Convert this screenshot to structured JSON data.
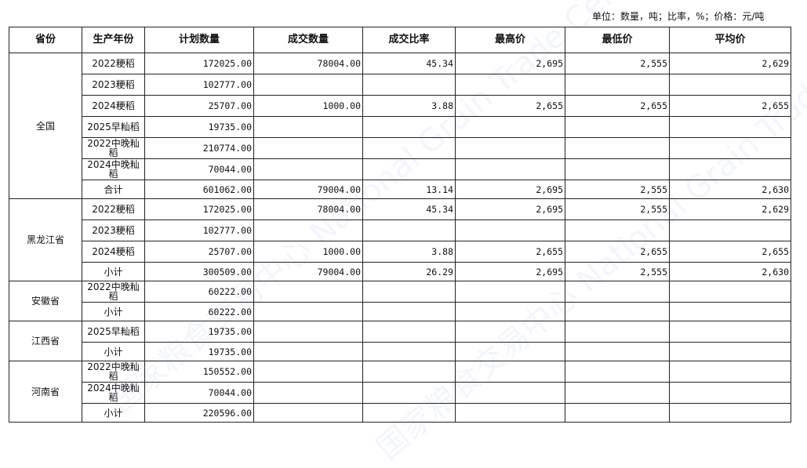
{
  "unit_note": "单位：数量，吨；比率，%；价格：元/吨",
  "watermark": "国家粮食交易中心 National Grain Trade Center",
  "headers": [
    "省份",
    "生产年份",
    "计划数量",
    "成交数量",
    "成交比率",
    "最高价",
    "最低价",
    "平均价"
  ],
  "groups": [
    {
      "province": "全国",
      "rows": [
        [
          "2022粳稻",
          "172025.00",
          "78004.00",
          "45.34",
          "2,695",
          "2,555",
          "2,629"
        ],
        [
          "2023粳稻",
          "102777.00",
          "",
          "",
          "",
          "",
          ""
        ],
        [
          "2024粳稻",
          "25707.00",
          "1000.00",
          "3.88",
          "2,655",
          "2,655",
          "2,655"
        ],
        [
          "2025早籼稻",
          "19735.00",
          "",
          "",
          "",
          "",
          ""
        ],
        [
          "2022中晚籼稻",
          "210774.00",
          "",
          "",
          "",
          "",
          ""
        ],
        [
          "2024中晚籼稻",
          "70044.00",
          "",
          "",
          "",
          "",
          ""
        ],
        [
          "合计",
          "601062.00",
          "79004.00",
          "13.14",
          "2,695",
          "2,555",
          "2,630"
        ]
      ]
    },
    {
      "province": "黑龙江省",
      "rows": [
        [
          "2022粳稻",
          "172025.00",
          "78004.00",
          "45.34",
          "2,695",
          "2,555",
          "2,629"
        ],
        [
          "2023粳稻",
          "102777.00",
          "",
          "",
          "",
          "",
          ""
        ],
        [
          "2024粳稻",
          "25707.00",
          "1000.00",
          "3.88",
          "2,655",
          "2,655",
          "2,655"
        ],
        [
          "小计",
          "300509.00",
          "79004.00",
          "26.29",
          "2,695",
          "2,555",
          "2,630"
        ]
      ]
    },
    {
      "province": "安徽省",
      "rows": [
        [
          "2022中晚籼稻",
          "60222.00",
          "",
          "",
          "",
          "",
          ""
        ],
        [
          "小计",
          "60222.00",
          "",
          "",
          "",
          "",
          ""
        ]
      ]
    },
    {
      "province": "江西省",
      "rows": [
        [
          "2025早籼稻",
          "19735.00",
          "",
          "",
          "",
          "",
          ""
        ],
        [
          "小计",
          "19735.00",
          "",
          "",
          "",
          "",
          ""
        ]
      ]
    },
    {
      "province": "河南省",
      "rows": [
        [
          "2022中晚籼稻",
          "150552.00",
          "",
          "",
          "",
          "",
          ""
        ],
        [
          "2024中晚籼稻",
          "70044.00",
          "",
          "",
          "",
          "",
          ""
        ],
        [
          "小计",
          "220596.00",
          "",
          "",
          "",
          "",
          ""
        ]
      ]
    }
  ]
}
